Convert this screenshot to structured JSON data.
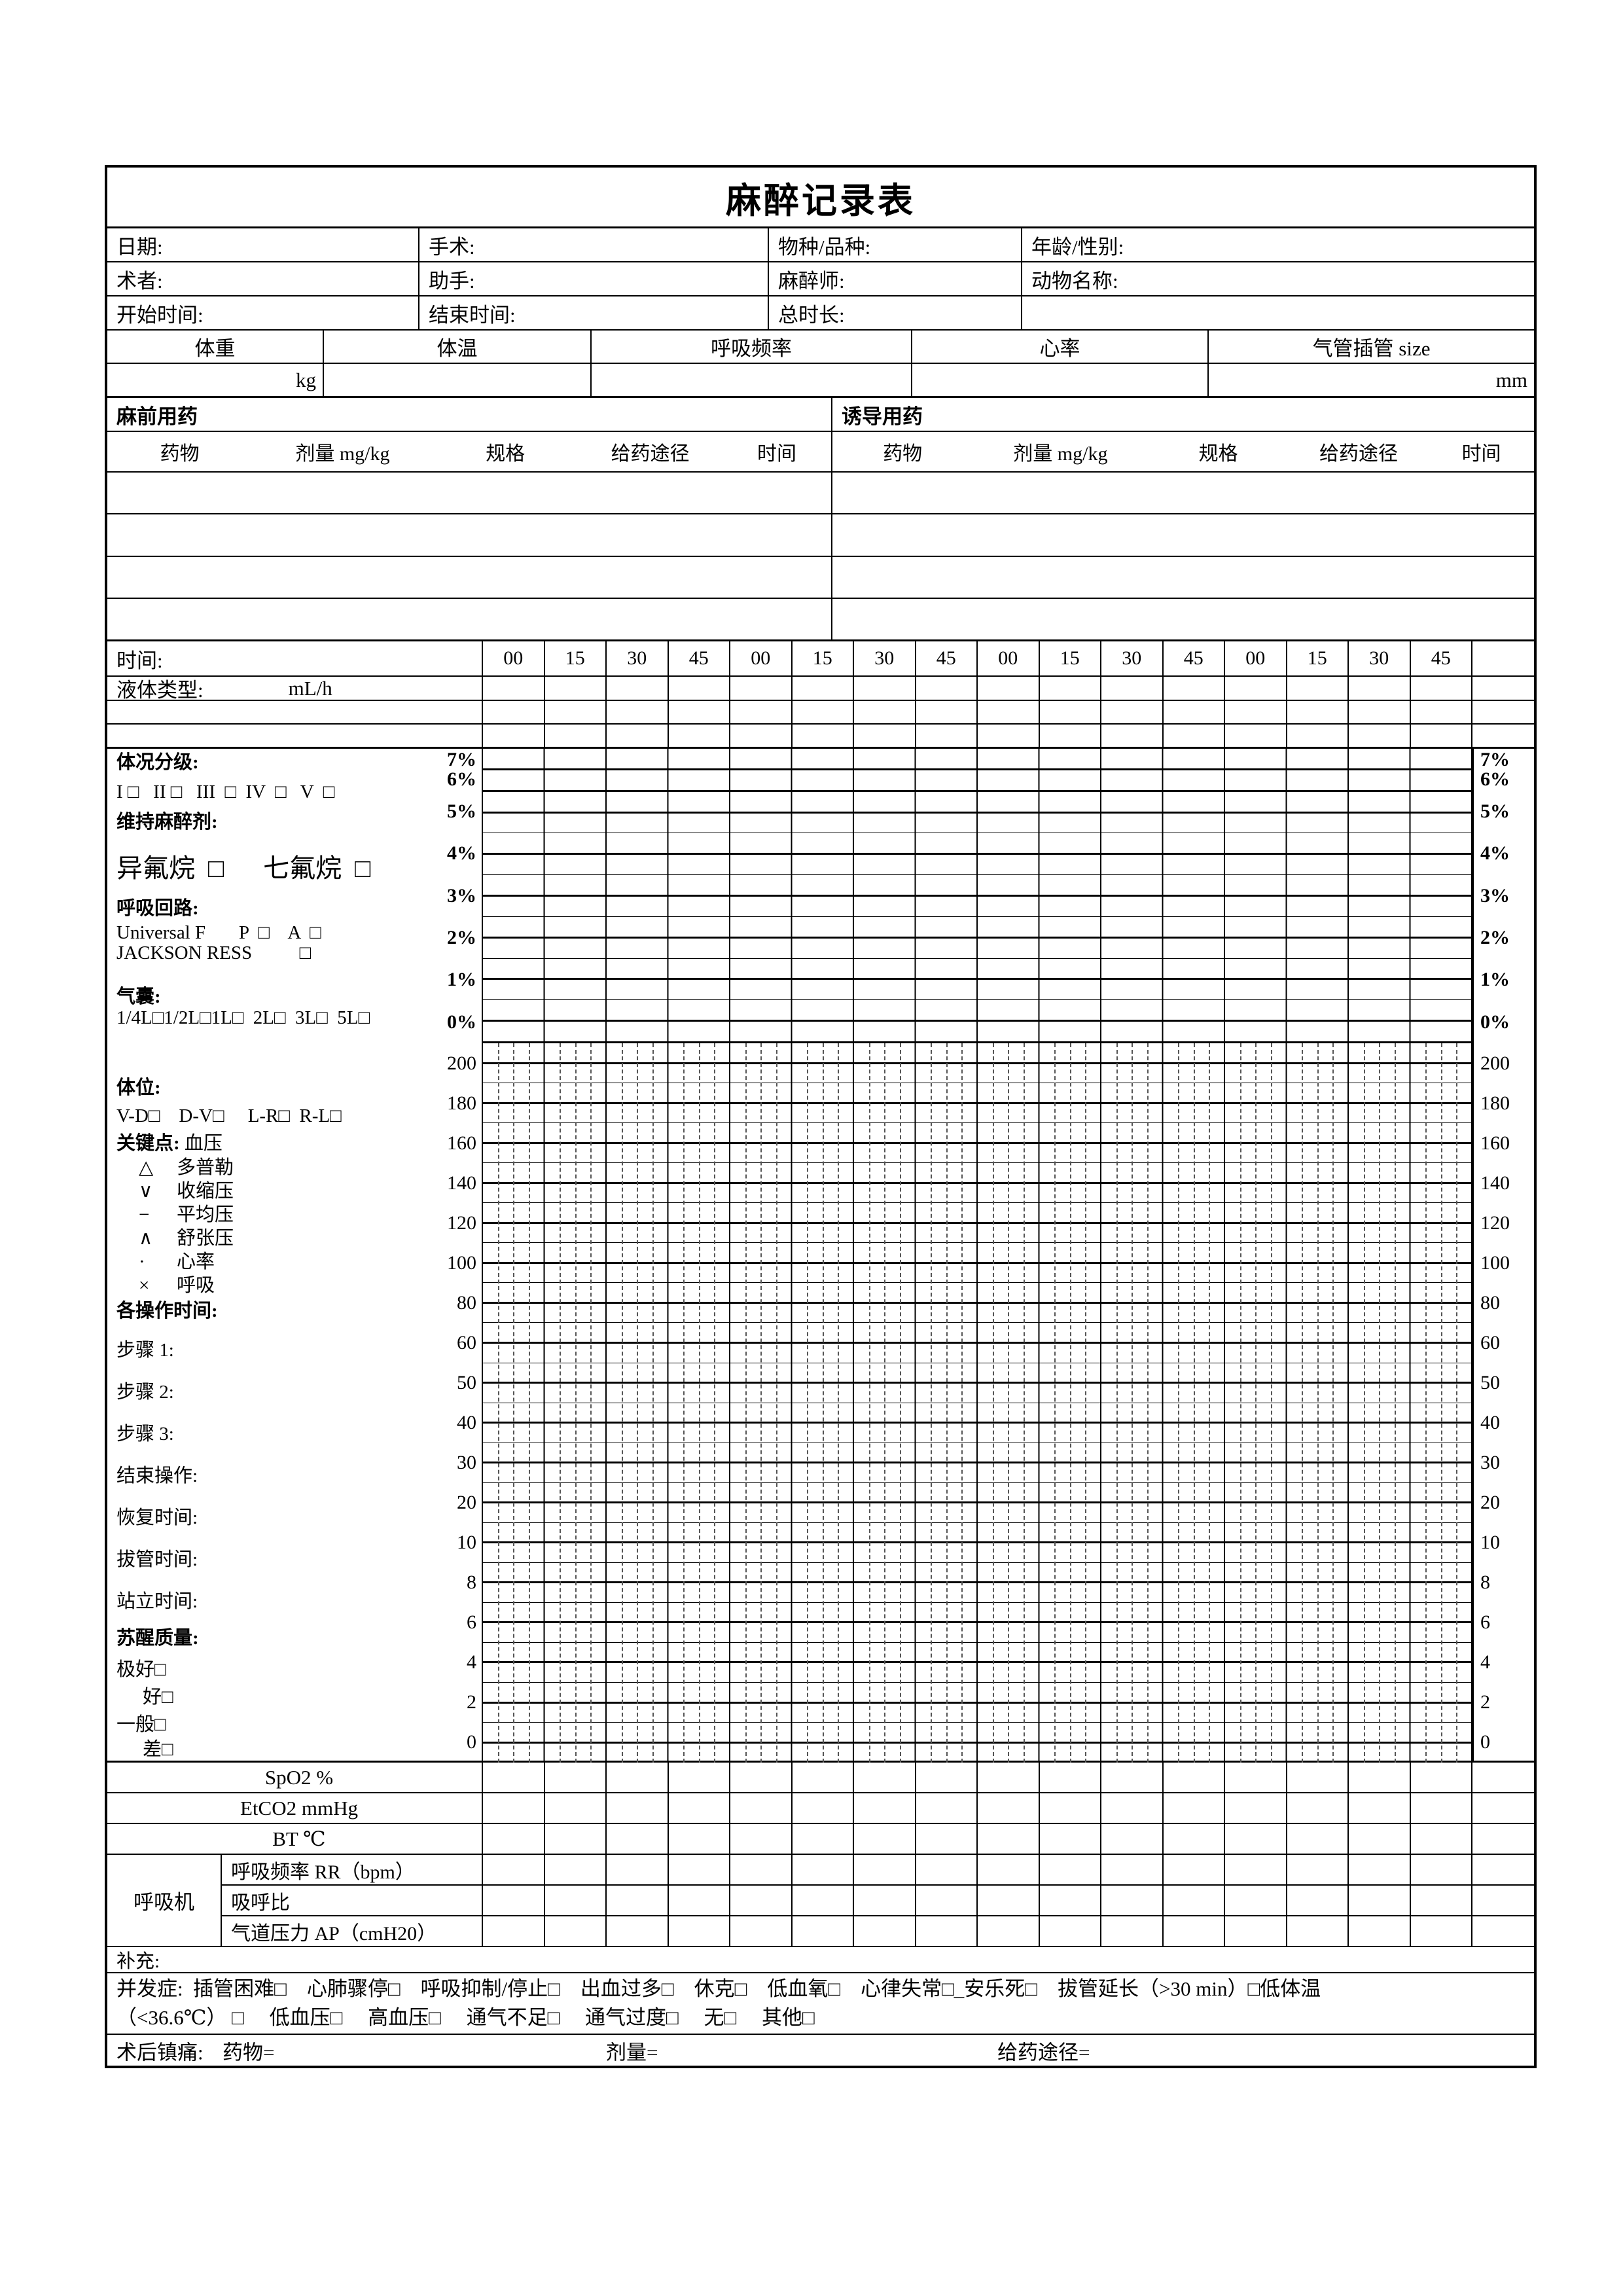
{
  "page": {
    "title": "麻醉记录表",
    "ink": "#000000",
    "paper": "#ffffff"
  },
  "info": {
    "row1": [
      "日期:",
      "手术:",
      "物种/品种:",
      "年龄/性别:"
    ],
    "row2": [
      "术者:",
      "助手:",
      "麻醉师:",
      "动物名称:"
    ],
    "row3": [
      "开始时间:",
      "结束时间:",
      "总时长:",
      ""
    ]
  },
  "vitals": {
    "headers": [
      "体重",
      "体温",
      "呼吸频率",
      "心率",
      "气管插管 size"
    ],
    "units": [
      "kg",
      "",
      "",
      "",
      "mm"
    ]
  },
  "medication": {
    "sections": [
      "麻前用药",
      "诱导用药"
    ],
    "columns": [
      "药物",
      "剂量 mg/kg",
      "规格",
      "给药途径",
      "时间"
    ],
    "empty_rows": 4
  },
  "timeline": {
    "label": "时间:",
    "slots": [
      "00",
      "15",
      "30",
      "45",
      "00",
      "15",
      "30",
      "45",
      "00",
      "15",
      "30",
      "45",
      "00",
      "15",
      "30",
      "45",
      ""
    ]
  },
  "fluid": {
    "label": "液体类型:",
    "unit": "mL/h",
    "empty_rows": 2
  },
  "chart_data": {
    "type": "table",
    "title": "麻醉监测网格（空白记录区）",
    "pct_axis": {
      "labels": [
        "7%",
        "6%",
        "5%",
        "4%",
        "3%",
        "2%",
        "1%",
        "0%"
      ],
      "sides": "both"
    },
    "num_axis": {
      "labels": [
        "200",
        "180",
        "160",
        "140",
        "120",
        "100",
        "80",
        "60",
        "50",
        "40",
        "30",
        "20",
        "10",
        "8",
        "6",
        "4",
        "2",
        "0"
      ],
      "sides": "both"
    },
    "columns": 16,
    "grid": "on",
    "values": []
  },
  "left_panel": {
    "pct_zone": [
      {
        "text": "体况分级:",
        "style": "b"
      },
      {
        "text": "I □   II □   III  □  IV  □   V  □",
        "style": ""
      },
      {
        "text": "维持麻醉剂:",
        "style": "b"
      },
      {
        "text": "异氟烷  □      七氟烷  □",
        "style": "big"
      },
      {
        "text": "呼吸回路:",
        "style": "b"
      },
      {
        "text": "Universal F       P  □    A  □",
        "style": ""
      },
      {
        "text": "JACKSON RESS          □",
        "style": ""
      },
      {
        "text": "气囊:",
        "style": "b"
      },
      {
        "text": "1/4L□1/2L□1L□  2L□  3L□  5L□",
        "style": ""
      }
    ],
    "num_zone": [
      {
        "text": "体位:",
        "style": "b"
      },
      {
        "text": "V-D□    D-V□     L-R□  R-L□",
        "style": ""
      },
      {
        "bold_part": "关键点:",
        "rest": " 血压",
        "style": "kp"
      },
      {
        "sym": "△",
        "name": "多普勒",
        "style": "leg"
      },
      {
        "sym": "∨",
        "name": "收缩压",
        "style": "leg"
      },
      {
        "sym": "−",
        "name": "平均压",
        "style": "leg"
      },
      {
        "sym": "∧",
        "name": "舒张压",
        "style": "leg"
      },
      {
        "sym": "·",
        "name": "心率",
        "style": "leg"
      },
      {
        "sym": "×",
        "name": "呼吸",
        "style": "leg"
      },
      {
        "text": "各操作时间:",
        "style": "b"
      },
      {
        "text": "步骤 1:",
        "style": ""
      },
      {
        "text": "步骤 2:",
        "style": ""
      },
      {
        "text": "步骤 3:",
        "style": ""
      },
      {
        "text": "结束操作:",
        "style": ""
      },
      {
        "text": "恢复时间:",
        "style": ""
      },
      {
        "text": "拔管时间:",
        "style": ""
      },
      {
        "text": "站立时间:",
        "style": ""
      },
      {
        "text": "苏醒质量:",
        "style": "b"
      },
      {
        "text": "极好□",
        "style": ""
      },
      {
        "text": "好□",
        "style": "ind"
      },
      {
        "text": "一般□",
        "style": ""
      },
      {
        "text": "差□",
        "style": "ind"
      }
    ]
  },
  "monitors": {
    "rows": [
      "SpO2 %",
      "EtCO2 mmHg",
      "BT  ℃"
    ],
    "ventilator": {
      "label": "呼吸机",
      "rows": [
        "呼吸频率 RR（bpm）",
        "吸呼比",
        "气道压力 AP（cmH20）"
      ]
    }
  },
  "supplement": {
    "label": "补充:"
  },
  "complications": {
    "line1": "并发症:  插管困难□    心肺骤停□    呼吸抑制/停止□    出血过多□    休克□    低血氧□    心律失常□_安乐死□    拔管延长（>30 min）□低体温",
    "line2": "（<36.6℃） □     低血压□     高血压□     通气不足□     通气过度□     无□     其他□"
  },
  "analgesia": {
    "label": "术后镇痛:",
    "fields": [
      "药物=",
      "剂量=",
      "给药途径="
    ]
  }
}
